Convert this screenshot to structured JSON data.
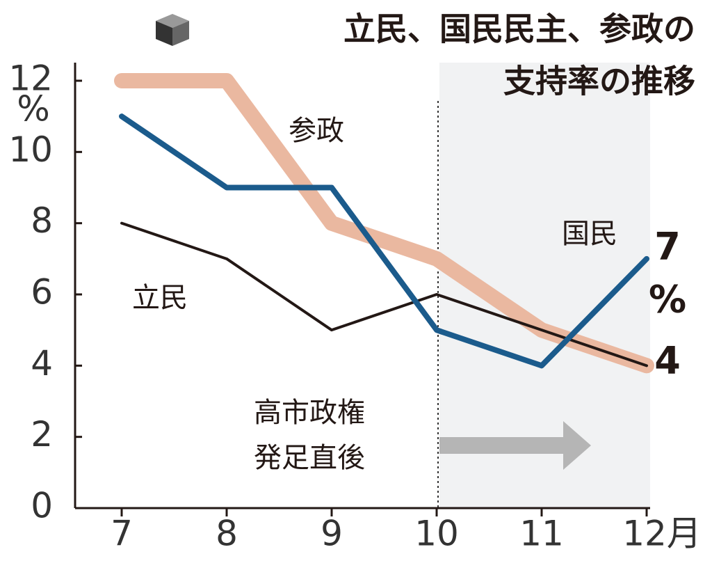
{
  "chart_data": {
    "type": "line",
    "title": [
      "立民、国民民主、参政の",
      "支持率の推移"
    ],
    "categories": [
      "7",
      "8",
      "9",
      "10",
      "11",
      "12月"
    ],
    "series": [
      {
        "name": "参政",
        "color": "#eab8a0",
        "values": [
          12,
          12,
          8,
          7,
          5,
          4
        ]
      },
      {
        "name": "立民",
        "color": "#231815",
        "values": [
          8,
          7,
          5,
          6,
          5,
          4
        ]
      },
      {
        "name": "国民",
        "color": "#1b5b8c",
        "values": [
          11,
          9,
          9,
          5,
          4,
          7
        ]
      }
    ],
    "y_unit": "%",
    "ylim": [
      0,
      12
    ],
    "yticks": [
      0,
      2,
      4,
      6,
      8,
      10,
      12
    ],
    "annotation": [
      "高市政権",
      "発足直後"
    ]
  }
}
